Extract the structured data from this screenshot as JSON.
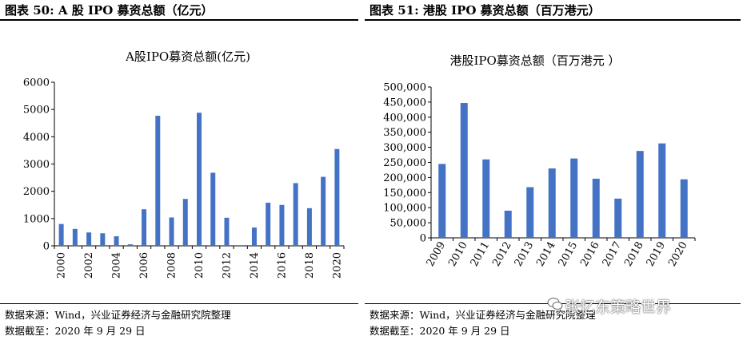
{
  "left": {
    "figure_title": "图表 50:  A 股 IPO 募资总额（亿元）",
    "source": "数据来源：Wind，兴业证券经济与金融研究院整理",
    "date": "数据截至：2020 年 9 月 29 日"
  },
  "right": {
    "figure_title": "图表 51:  港股 IPO 募资总额（百万港元）",
    "source": "数据来源：Wind，兴业证券经济与金融研究院整理",
    "date": "数据截至：2020 年 9 月 29 日"
  },
  "watermark": "张忆东策略世界",
  "colors": {
    "bar": "#4472C4",
    "axis": "#000000"
  },
  "chart_data": [
    {
      "type": "bar",
      "title": "A股IPO募资总额(亿元)",
      "categories": [
        "2000",
        "2001",
        "2002",
        "2003",
        "2004",
        "2005",
        "2006",
        "2007",
        "2008",
        "2009",
        "2010",
        "2011",
        "2012",
        "2013",
        "2014",
        "2015",
        "2016",
        "2017",
        "2018",
        "2019",
        "2020"
      ],
      "values": [
        800,
        620,
        490,
        460,
        350,
        55,
        1340,
        4770,
        1040,
        1720,
        4880,
        2680,
        1030,
        0,
        670,
        1580,
        1500,
        2300,
        1380,
        2530,
        3550
      ],
      "tick_labels_x": [
        "2000",
        "2002",
        "2004",
        "2006",
        "2008",
        "2010",
        "2012",
        "2014",
        "2016",
        "2018",
        "2020"
      ],
      "yticks": [
        "0",
        "1000",
        "2000",
        "3000",
        "4000",
        "5000",
        "6000"
      ],
      "ylim": [
        0,
        6000
      ]
    },
    {
      "type": "bar",
      "title": "港股IPO募资总额（百万港元 ）",
      "categories": [
        "2009",
        "2010",
        "2011",
        "2012",
        "2013",
        "2014",
        "2015",
        "2016",
        "2017",
        "2018",
        "2019",
        "2020"
      ],
      "values": [
        245000,
        447000,
        260000,
        90000,
        168000,
        230000,
        263000,
        196000,
        130000,
        288000,
        313000,
        194000
      ],
      "yticks": [
        "0",
        "50,000",
        "100,000",
        "150,000",
        "200,000",
        "250,000",
        "300,000",
        "350,000",
        "400,000",
        "450,000",
        "500,000"
      ],
      "ylim": [
        0,
        500000
      ]
    }
  ]
}
